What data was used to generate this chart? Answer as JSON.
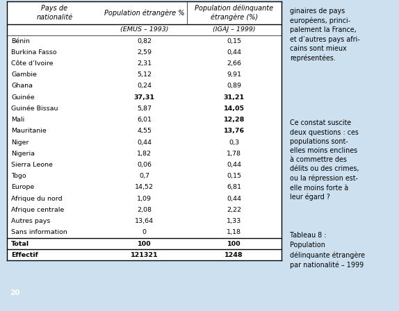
{
  "col1_header": "Pays de\nnationalité",
  "col2_header": "Population étrangère %",
  "col3_header": "Population délinquante\nétrangère (%)",
  "col2_subheader": "(EMUS – 1993)",
  "col3_subheader": "(IGAJ – 1999)",
  "rows": [
    [
      "Bénin",
      "0,82",
      "0,15",
      false,
      false
    ],
    [
      "Burkina Fasso",
      "2,59",
      "0,44",
      false,
      false
    ],
    [
      "Côte d’Ivoire",
      "2,31",
      "2,66",
      false,
      false
    ],
    [
      "Gambie",
      "5,12",
      "9,91",
      false,
      false
    ],
    [
      "Ghana",
      "0,24",
      "0,89",
      false,
      false
    ],
    [
      "Guinée",
      "37,31",
      "31,21",
      true,
      true
    ],
    [
      "Guinée Bissau",
      "5,87",
      "14,05",
      false,
      true
    ],
    [
      "Mali",
      "6,01",
      "12,28",
      false,
      true
    ],
    [
      "Mauritanie",
      "4,55",
      "13,76",
      false,
      true
    ],
    [
      "Niger",
      "0,44",
      "0,3",
      false,
      false
    ],
    [
      "Nigeria",
      "1,82",
      "1,78",
      false,
      false
    ],
    [
      "Sierra Leone",
      "0,06",
      "0,44",
      false,
      false
    ],
    [
      "Togo",
      "0,7",
      "0,15",
      false,
      false
    ],
    [
      "Europe",
      "14,52",
      "6,81",
      false,
      false
    ],
    [
      "Afrique du nord",
      "1,09",
      "0,44",
      false,
      false
    ],
    [
      "Afrique centrale",
      "2,08",
      "2,22",
      false,
      false
    ],
    [
      "Autres pays",
      "13,64",
      "1,33",
      false,
      false
    ],
    [
      "Sans information",
      "0",
      "1,18",
      false,
      false
    ]
  ],
  "total_row": [
    "Total",
    "100",
    "100"
  ],
  "effectif_row": [
    "Effectif",
    "121321",
    "1248"
  ],
  "bg_color": "#cde0ef",
  "table_bg": "#ffffff",
  "right_text1": "ginaires de pays\neuropéens, princi-\npalement la France,\net d’autres pays afri-\ncains sont mieux\nreprésentées.",
  "right_text2": "Ce constat suscite\ndeux questions : ces\npopulations sont-\nelles moins enclines\nà commettre des\ndélits ou des crimes,\nou la répression est-\nelle moins forte à\nleur égard ?",
  "right_text3": "Tableau 8 :\nPopulation\ndélinquante étrangère\npar nationalité – 1999",
  "page_number": "20",
  "page_box_color": "#1e3f7a"
}
